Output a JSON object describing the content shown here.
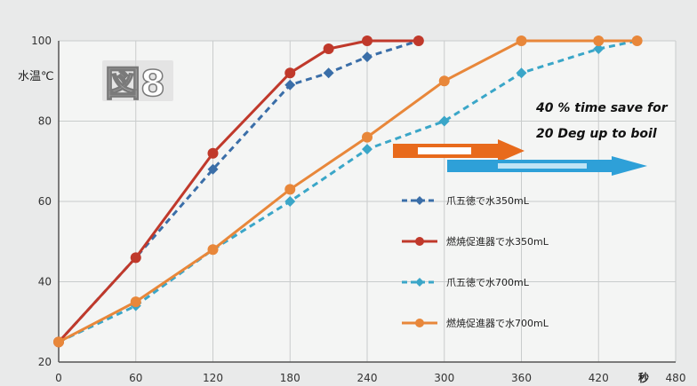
{
  "figure_label": "図8",
  "annotation": {
    "line1": "40 % time save for",
    "line2": "20 Deg up to boil"
  },
  "colors": {
    "background": "#e9eaea",
    "plot_bg": "#f4f5f4",
    "grid": "#c9cccc",
    "red": "#c0392b",
    "orange": "#e8873a",
    "blue_dark": "#3a6ea8",
    "blue_light": "#3aa6c8",
    "arrow_orange": "#e86a1c",
    "arrow_blue": "#2ea0d8"
  },
  "chart_data": {
    "type": "line",
    "title": "",
    "xlabel": "秒",
    "ylabel": "水温℃",
    "xlim": [
      0,
      480
    ],
    "ylim": [
      20,
      100
    ],
    "xticks": [
      0,
      60,
      120,
      180,
      240,
      300,
      360,
      420,
      480
    ],
    "yticks": [
      20,
      40,
      60,
      80,
      100
    ],
    "grid": true,
    "legend_position": "right",
    "series": [
      {
        "name": "爪五徳で水350mL",
        "style": "dashed",
        "color_key": "blue_dark",
        "marker": "diamond",
        "points": [
          [
            0,
            25
          ],
          [
            60,
            46
          ],
          [
            120,
            68
          ],
          [
            180,
            89
          ],
          [
            210,
            92
          ],
          [
            240,
            96
          ],
          [
            280,
            100
          ]
        ]
      },
      {
        "name": "燃焼促進器で水350mL",
        "style": "solid",
        "color_key": "red",
        "marker": "circle",
        "points": [
          [
            0,
            25
          ],
          [
            60,
            46
          ],
          [
            120,
            72
          ],
          [
            180,
            92
          ],
          [
            210,
            98
          ],
          [
            240,
            100
          ],
          [
            280,
            100
          ]
        ]
      },
      {
        "name": "爪五徳で水700mL",
        "style": "dashed",
        "color_key": "blue_light",
        "marker": "diamond",
        "points": [
          [
            0,
            25
          ],
          [
            60,
            34
          ],
          [
            120,
            48
          ],
          [
            180,
            60
          ],
          [
            240,
            73
          ],
          [
            300,
            80
          ],
          [
            360,
            92
          ],
          [
            420,
            98
          ],
          [
            450,
            100
          ]
        ]
      },
      {
        "name": "燃焼促進器で水700mL",
        "style": "solid",
        "color_key": "orange",
        "marker": "circle",
        "points": [
          [
            0,
            25
          ],
          [
            60,
            35
          ],
          [
            120,
            48
          ],
          [
            180,
            63
          ],
          [
            240,
            76
          ],
          [
            300,
            90
          ],
          [
            360,
            100
          ],
          [
            420,
            100
          ],
          [
            450,
            100
          ]
        ]
      }
    ]
  }
}
